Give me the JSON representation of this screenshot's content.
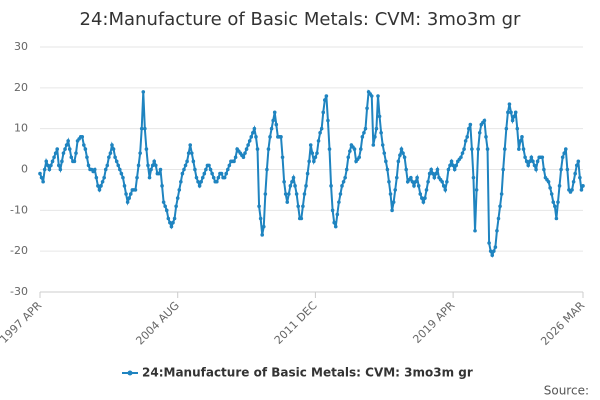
{
  "chart_data": {
    "type": "line",
    "title": "24:Manufacture of Basic Metals: CVM: 3mo3m gr",
    "source": "Source:",
    "x": [
      "1997 APR",
      "1997 MAY",
      "1997 JUN",
      "1997 JUL",
      "1997 AUG",
      "1997 SEP",
      "1997 OCT",
      "1997 NOV",
      "1997 DEC",
      "1998 JAN",
      "1998 FEB",
      "1998 MAR",
      "1998 APR",
      "1998 MAY",
      "1998 JUN",
      "1998 JUL",
      "1998 AUG",
      "1998 SEP",
      "1998 OCT",
      "1998 NOV",
      "1998 DEC",
      "1999 JAN",
      "1999 FEB",
      "1999 MAR",
      "1999 APR",
      "1999 MAY",
      "1999 JUN",
      "1999 JUL",
      "1999 AUG",
      "1999 SEP",
      "1999 OCT",
      "1999 NOV",
      "1999 DEC",
      "2000 JAN",
      "2000 FEB",
      "2000 MAR",
      "2000 APR",
      "2000 MAY",
      "2000 JUN",
      "2000 JUL",
      "2000 AUG",
      "2000 SEP",
      "2000 OCT",
      "2000 NOV",
      "2000 DEC",
      "2001 JAN",
      "2001 FEB",
      "2001 MAR",
      "2001 APR",
      "2001 MAY",
      "2001 JUN",
      "2001 JUL",
      "2001 AUG",
      "2001 SEP",
      "2001 OCT",
      "2001 NOV",
      "2001 DEC",
      "2002 JAN",
      "2002 FEB",
      "2002 MAR",
      "2002 APR",
      "2002 MAY",
      "2002 JUN",
      "2002 JUL",
      "2002 AUG",
      "2002 SEP",
      "2002 OCT",
      "2002 NOV",
      "2002 DEC",
      "2003 JAN",
      "2003 FEB",
      "2003 MAR",
      "2003 APR",
      "2003 MAY",
      "2003 JUN",
      "2003 JUL",
      "2003 AUG",
      "2003 SEP",
      "2003 OCT",
      "2003 NOV",
      "2003 DEC",
      "2004 JAN",
      "2004 FEB",
      "2004 MAR",
      "2004 APR",
      "2004 MAY",
      "2004 JUN",
      "2004 JUL",
      "2004 AUG",
      "2004 SEP",
      "2004 OCT",
      "2004 NOV",
      "2004 DEC",
      "2005 JAN",
      "2005 FEB",
      "2005 MAR",
      "2005 APR",
      "2005 MAY",
      "2005 JUN",
      "2005 JUL",
      "2005 AUG",
      "2005 SEP",
      "2005 OCT",
      "2005 NOV",
      "2005 DEC",
      "2006 JAN",
      "2006 FEB",
      "2006 MAR",
      "2006 APR",
      "2006 MAY",
      "2006 JUN",
      "2006 JUL",
      "2006 AUG",
      "2006 SEP",
      "2006 OCT",
      "2006 NOV",
      "2006 DEC",
      "2007 JAN",
      "2007 FEB",
      "2007 MAR",
      "2007 APR",
      "2007 MAY",
      "2007 JUN",
      "2007 JUL",
      "2007 AUG",
      "2007 SEP",
      "2007 OCT",
      "2007 NOV",
      "2007 DEC",
      "2008 JAN",
      "2008 FEB",
      "2008 MAR",
      "2008 APR",
      "2008 MAY",
      "2008 JUN",
      "2008 JUL",
      "2008 AUG",
      "2008 SEP",
      "2008 OCT",
      "2008 NOV",
      "2008 DEC",
      "2009 JAN",
      "2009 FEB",
      "2009 MAR",
      "2009 APR",
      "2009 MAY",
      "2009 JUN",
      "2009 JUL",
      "2009 AUG",
      "2009 SEP",
      "2009 OCT",
      "2009 NOV",
      "2009 DEC",
      "2010 JAN",
      "2010 FEB",
      "2010 MAR",
      "2010 APR",
      "2010 MAY",
      "2010 JUN",
      "2010 JUL",
      "2010 AUG",
      "2010 SEP",
      "2010 OCT",
      "2010 NOV",
      "2010 DEC",
      "2011 JAN",
      "2011 FEB",
      "2011 MAR",
      "2011 APR",
      "2011 MAY",
      "2011 JUN",
      "2011 JUL",
      "2011 AUG",
      "2011 SEP",
      "2011 OCT",
      "2011 NOV",
      "2011 DEC",
      "2012 JAN",
      "2012 FEB",
      "2012 MAR",
      "2012 APR",
      "2012 MAY",
      "2012 JUN",
      "2012 JUL",
      "2012 AUG",
      "2012 SEP",
      "2012 OCT",
      "2012 NOV",
      "2012 DEC",
      "2013 JAN",
      "2013 FEB",
      "2013 MAR",
      "2013 APR",
      "2013 MAY",
      "2013 JUN",
      "2013 JUL",
      "2013 AUG",
      "2013 SEP",
      "2013 OCT",
      "2013 NOV",
      "2013 DEC",
      "2014 JAN",
      "2014 FEB",
      "2014 MAR",
      "2014 APR",
      "2014 MAY",
      "2014 JUN",
      "2014 JUL",
      "2014 AUG",
      "2014 SEP",
      "2014 OCT",
      "2014 NOV",
      "2014 DEC",
      "2015 JAN",
      "2015 FEB",
      "2015 MAR",
      "2015 APR",
      "2015 MAY",
      "2015 JUN",
      "2015 JUL",
      "2015 AUG",
      "2015 SEP",
      "2015 OCT",
      "2015 NOV",
      "2015 DEC",
      "2016 JAN",
      "2016 FEB",
      "2016 MAR",
      "2016 APR",
      "2016 MAY",
      "2016 JUN",
      "2016 JUL",
      "2016 AUG",
      "2016 SEP",
      "2016 OCT",
      "2016 NOV",
      "2016 DEC",
      "2017 JAN",
      "2017 FEB",
      "2017 MAR",
      "2017 APR",
      "2017 MAY",
      "2017 JUN",
      "2017 JUL",
      "2017 AUG",
      "2017 SEP",
      "2017 OCT",
      "2017 NOV",
      "2017 DEC",
      "2018 JAN",
      "2018 FEB",
      "2018 MAR",
      "2018 APR",
      "2018 MAY",
      "2018 JUN",
      "2018 JUL",
      "2018 AUG",
      "2018 SEP",
      "2018 OCT",
      "2018 NOV",
      "2018 DEC",
      "2019 JAN",
      "2019 FEB",
      "2019 MAR",
      "2019 APR",
      "2019 MAY",
      "2019 JUN",
      "2019 JUL",
      "2019 AUG",
      "2019 SEP",
      "2019 OCT",
      "2019 NOV",
      "2019 DEC",
      "2020 JAN",
      "2020 FEB",
      "2020 MAR",
      "2020 APR",
      "2020 MAY",
      "2020 JUN",
      "2020 JUL",
      "2020 AUG",
      "2020 SEP",
      "2020 OCT",
      "2020 NOV",
      "2020 DEC",
      "2021 JAN",
      "2021 FEB",
      "2021 MAR",
      "2021 APR",
      "2021 MAY",
      "2021 JUN",
      "2021 JUL",
      "2021 AUG",
      "2021 SEP",
      "2021 OCT",
      "2021 NOV",
      "2021 DEC",
      "2022 JAN",
      "2022 FEB",
      "2022 MAR",
      "2022 APR",
      "2022 MAY",
      "2022 JUN",
      "2022 JUL",
      "2022 AUG",
      "2022 SEP",
      "2022 OCT",
      "2022 NOV",
      "2022 DEC",
      "2023 JAN",
      "2023 FEB",
      "2023 MAR",
      "2023 APR",
      "2023 MAY",
      "2023 JUN",
      "2023 JUL",
      "2023 AUG",
      "2023 SEP",
      "2023 OCT",
      "2023 NOV",
      "2023 DEC",
      "2024 JAN",
      "2024 FEB",
      "2024 MAR",
      "2024 APR",
      "2024 MAY",
      "2024 JUN",
      "2024 JUL",
      "2024 AUG",
      "2024 SEP",
      "2024 OCT",
      "2024 NOV",
      "2024 DEC",
      "2025 JAN",
      "2025 FEB",
      "2025 MAR",
      "2025 APR",
      "2025 MAY",
      "2025 JUN",
      "2025 JUL",
      "2025 AUG",
      "2025 SEP",
      "2025 OCT",
      "2025 NOV",
      "2025 DEC",
      "2026 JAN",
      "2026 FEB",
      "2026 MAR"
    ],
    "series": [
      {
        "name": "24:Manufacture of Basic Metals: CVM: 3mo3m gr",
        "color": "#1f84c0",
        "values": [
          -1,
          -2,
          -3,
          0,
          2,
          1,
          0,
          1,
          2,
          3,
          4,
          5,
          1,
          0,
          2,
          4,
          5,
          6,
          7,
          5,
          3,
          2,
          2,
          4,
          7,
          7.5,
          8,
          8,
          6,
          5,
          3,
          1,
          0,
          0,
          -0.5,
          0,
          -2,
          -4,
          -5,
          -4,
          -3,
          -2,
          0,
          1,
          3,
          4,
          6,
          5,
          3,
          2,
          1,
          0,
          -1,
          -2,
          -4,
          -6,
          -8,
          -7,
          -6,
          -5,
          -5,
          -5,
          -2,
          1,
          4,
          10,
          19,
          10,
          5,
          1,
          -2,
          0,
          1,
          2,
          1,
          -1,
          -1,
          0,
          -4,
          -8,
          -9,
          -10,
          -12,
          -13,
          -14,
          -13,
          -12,
          -9,
          -7,
          -5,
          -3,
          -1,
          0,
          1,
          2,
          4,
          6,
          4,
          2,
          0,
          -2,
          -3,
          -4,
          -3,
          -2,
          -1,
          0,
          1,
          1,
          0,
          -1,
          -2,
          -3,
          -3,
          -2,
          -1,
          -1,
          -2,
          -2,
          -1,
          0,
          1,
          2,
          2,
          2,
          3,
          5,
          4.5,
          4,
          3.5,
          3,
          4,
          5,
          6,
          7,
          8,
          9,
          10,
          8,
          5,
          -9,
          -12,
          -16,
          -14,
          -6,
          0,
          5,
          8,
          10,
          12,
          14,
          11,
          8,
          8,
          8,
          3,
          -3,
          -6,
          -8,
          -6,
          -4,
          -3,
          -2,
          -4,
          -6,
          -9,
          -12,
          -12,
          -9,
          -6,
          -4,
          -1,
          2,
          6,
          4,
          2,
          3,
          4,
          7,
          9,
          10,
          14,
          17,
          18,
          12,
          5,
          -4,
          -10,
          -13,
          -14,
          -11,
          -8,
          -6,
          -4,
          -3,
          -2,
          0,
          3,
          4.5,
          6,
          5.5,
          5,
          2,
          2.5,
          3,
          5,
          8,
          9,
          10,
          15,
          19,
          18.5,
          18,
          6,
          8,
          10,
          18,
          13,
          9,
          6,
          4,
          2,
          0,
          -3,
          -6,
          -10,
          -8,
          -5,
          -2,
          2,
          3.5,
          5,
          4,
          3,
          0,
          -3,
          -2.5,
          -2,
          -3,
          -4,
          -3,
          -2,
          -4,
          -6,
          -7,
          -8,
          -7,
          -5,
          -3,
          -1,
          0,
          -1,
          -2,
          -1,
          0,
          -2,
          -2.5,
          -3,
          -4,
          -5,
          -3,
          0,
          1,
          2,
          1,
          0,
          1,
          2,
          2.5,
          3,
          4,
          5,
          7,
          8,
          10,
          11,
          5,
          -2,
          -15,
          -5,
          5,
          9,
          11,
          11.5,
          12,
          8,
          5,
          -18,
          -20,
          -21,
          -20,
          -19,
          -15,
          -12,
          -9,
          -6,
          0,
          5,
          10,
          14,
          16,
          14,
          12,
          13,
          14,
          10,
          5,
          7,
          8,
          5,
          3,
          2,
          1,
          2,
          3,
          2,
          1,
          0,
          2,
          3,
          3,
          3,
          0,
          -2,
          -2.5,
          -3,
          -4.5,
          -6,
          -8,
          -9,
          -12,
          -8,
          -4,
          0,
          3,
          4,
          5,
          0,
          -5,
          -5.5,
          -5,
          -3,
          -1,
          1,
          2,
          -2,
          -5,
          -4
        ]
      }
    ],
    "xticks": [
      "1997 APR",
      "2004 AUG",
      "2011 DEC",
      "2019 APR",
      "2026 MAR"
    ],
    "ylim": [
      -30,
      30
    ],
    "yticks": [
      -30,
      -20,
      -10,
      0,
      10,
      20,
      30
    ],
    "grid": true
  }
}
